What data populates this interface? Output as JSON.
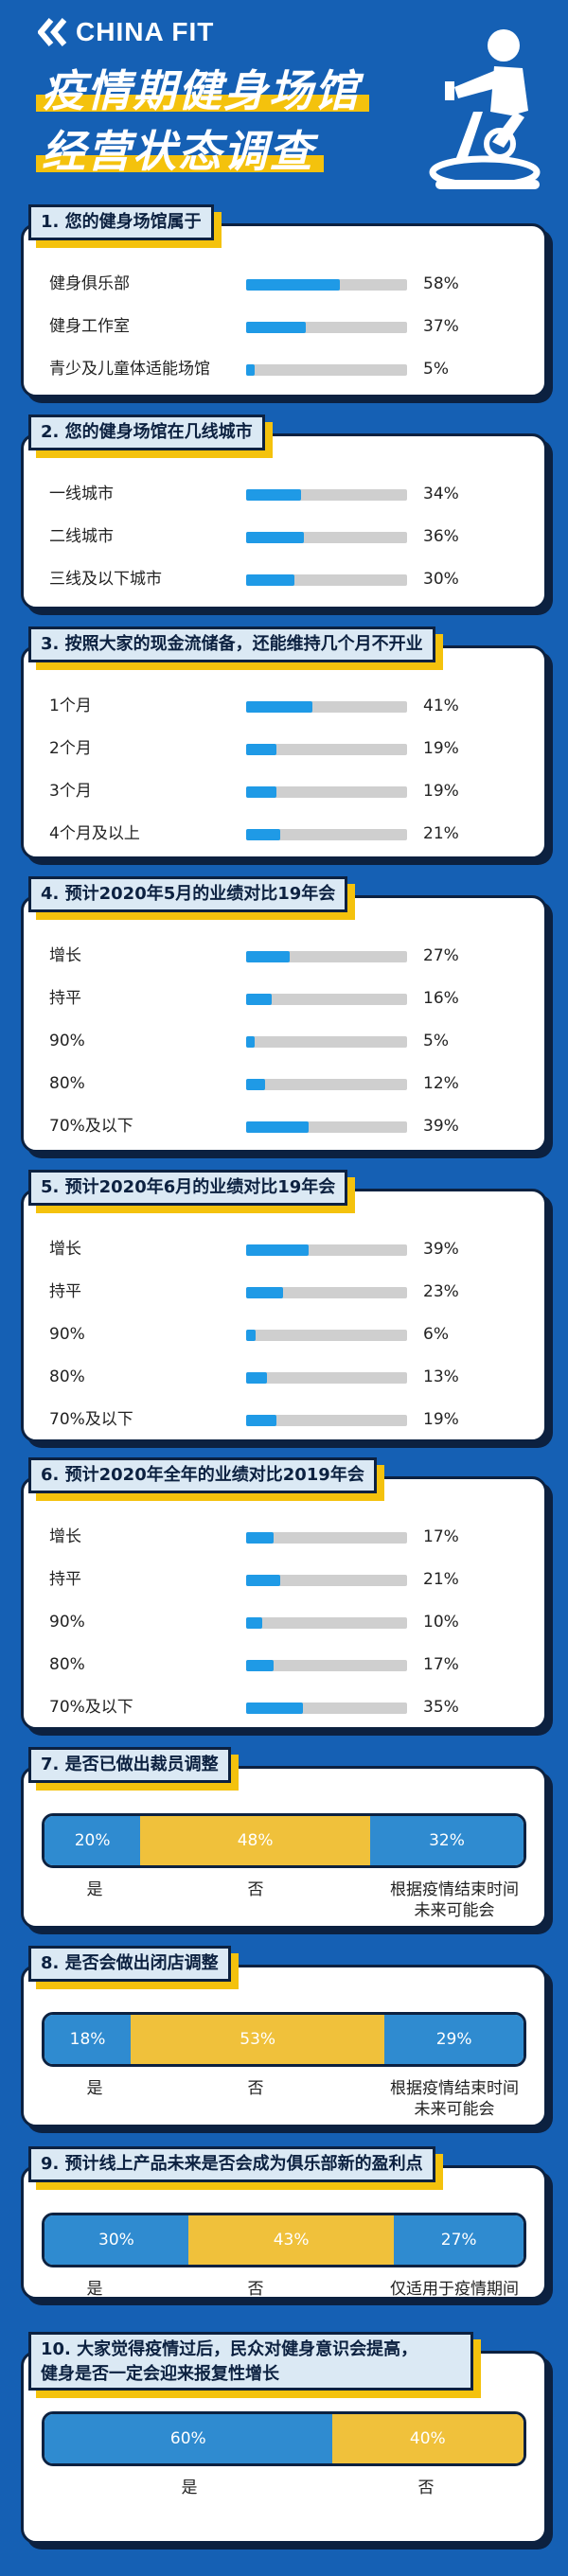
{
  "brand": {
    "name": "CHINA FIT"
  },
  "title": {
    "line1": "疫情期健身场馆",
    "line2": "经营状态调查"
  },
  "chart_data": [
    {
      "type": "bar",
      "title": "1. 您的健身场馆属于",
      "categories": [
        "健身俱乐部",
        "健身工作室",
        "青少及儿童体适能场馆"
      ],
      "values": [
        58,
        37,
        5
      ],
      "labels": [
        "58%",
        "37%",
        "5%"
      ]
    },
    {
      "type": "bar",
      "title": "2. 您的健身场馆在几线城市",
      "categories": [
        "一线城市",
        "二线城市",
        "三线及以下城市"
      ],
      "values": [
        34,
        36,
        30
      ],
      "labels": [
        "34%",
        "36%",
        "30%"
      ]
    },
    {
      "type": "bar",
      "title": "3. 按照大家的现金流储备，还能维持几个月不开业",
      "categories": [
        "1个月",
        "2个月",
        "3个月",
        "4个月及以上"
      ],
      "values": [
        41,
        19,
        19,
        21
      ],
      "labels": [
        "41%",
        "19%",
        "19%",
        "21%"
      ]
    },
    {
      "type": "bar",
      "title": "4. 预计2020年5月的业绩对比19年会",
      "categories": [
        "增长",
        "持平",
        "90%",
        "80%",
        "70%及以下"
      ],
      "values": [
        27,
        16,
        5,
        12,
        39
      ],
      "labels": [
        "27%",
        "16%",
        "5%",
        "12%",
        "39%"
      ]
    },
    {
      "type": "bar",
      "title": "5. 预计2020年6月的业绩对比19年会",
      "categories": [
        "增长",
        "持平",
        "90%",
        "80%",
        "70%及以下"
      ],
      "values": [
        39,
        23,
        6,
        13,
        19
      ],
      "labels": [
        "39%",
        "23%",
        "6%",
        "13%",
        "19%"
      ]
    },
    {
      "type": "bar",
      "title": "6. 预计2020年全年的业绩对比2019年会",
      "categories": [
        "增长",
        "持平",
        "90%",
        "80%",
        "70%及以下"
      ],
      "values": [
        17,
        21,
        10,
        17,
        35
      ],
      "labels": [
        "17%",
        "21%",
        "10%",
        "17%",
        "35%"
      ]
    },
    {
      "type": "stacked-bar",
      "title": "7. 是否已做出裁员调整",
      "categories": [
        "是",
        "否",
        "根据疫情结束时间\n未来可能会"
      ],
      "values": [
        20,
        48,
        32
      ],
      "labels": [
        "20%",
        "48%",
        "32%"
      ],
      "colors": [
        "#2f8bd0",
        "#f0c13b",
        "#2f8bd0"
      ]
    },
    {
      "type": "stacked-bar",
      "title": "8. 是否会做出闭店调整",
      "categories": [
        "是",
        "否",
        "根据疫情结束时间\n未来可能会"
      ],
      "values": [
        18,
        53,
        29
      ],
      "labels": [
        "18%",
        "53%",
        "29%"
      ],
      "colors": [
        "#2f8bd0",
        "#f0c13b",
        "#2f8bd0"
      ]
    },
    {
      "type": "stacked-bar",
      "title": "9. 预计线上产品未来是否会成为俱乐部新的盈利点",
      "categories": [
        "是",
        "否",
        "仅适用于疫情期间"
      ],
      "values": [
        30,
        43,
        27
      ],
      "labels": [
        "30%",
        "43%",
        "27%"
      ],
      "colors": [
        "#2f8bd0",
        "#f0c13b",
        "#2f8bd0"
      ]
    },
    {
      "type": "stacked-bar",
      "title": "10. 大家觉得疫情过后，民众对健身意识会提高，健身是否一定会迎来报复性增长",
      "title_lines": [
        "10. 大家觉得疫情过后，民众对健身意识会提高，",
        "健身是否一定会迎来报复性增长"
      ],
      "categories": [
        "是",
        "否"
      ],
      "values": [
        60,
        40
      ],
      "labels": [
        "60%",
        "40%"
      ],
      "colors": [
        "#2f8bd0",
        "#f0c13b"
      ]
    }
  ]
}
